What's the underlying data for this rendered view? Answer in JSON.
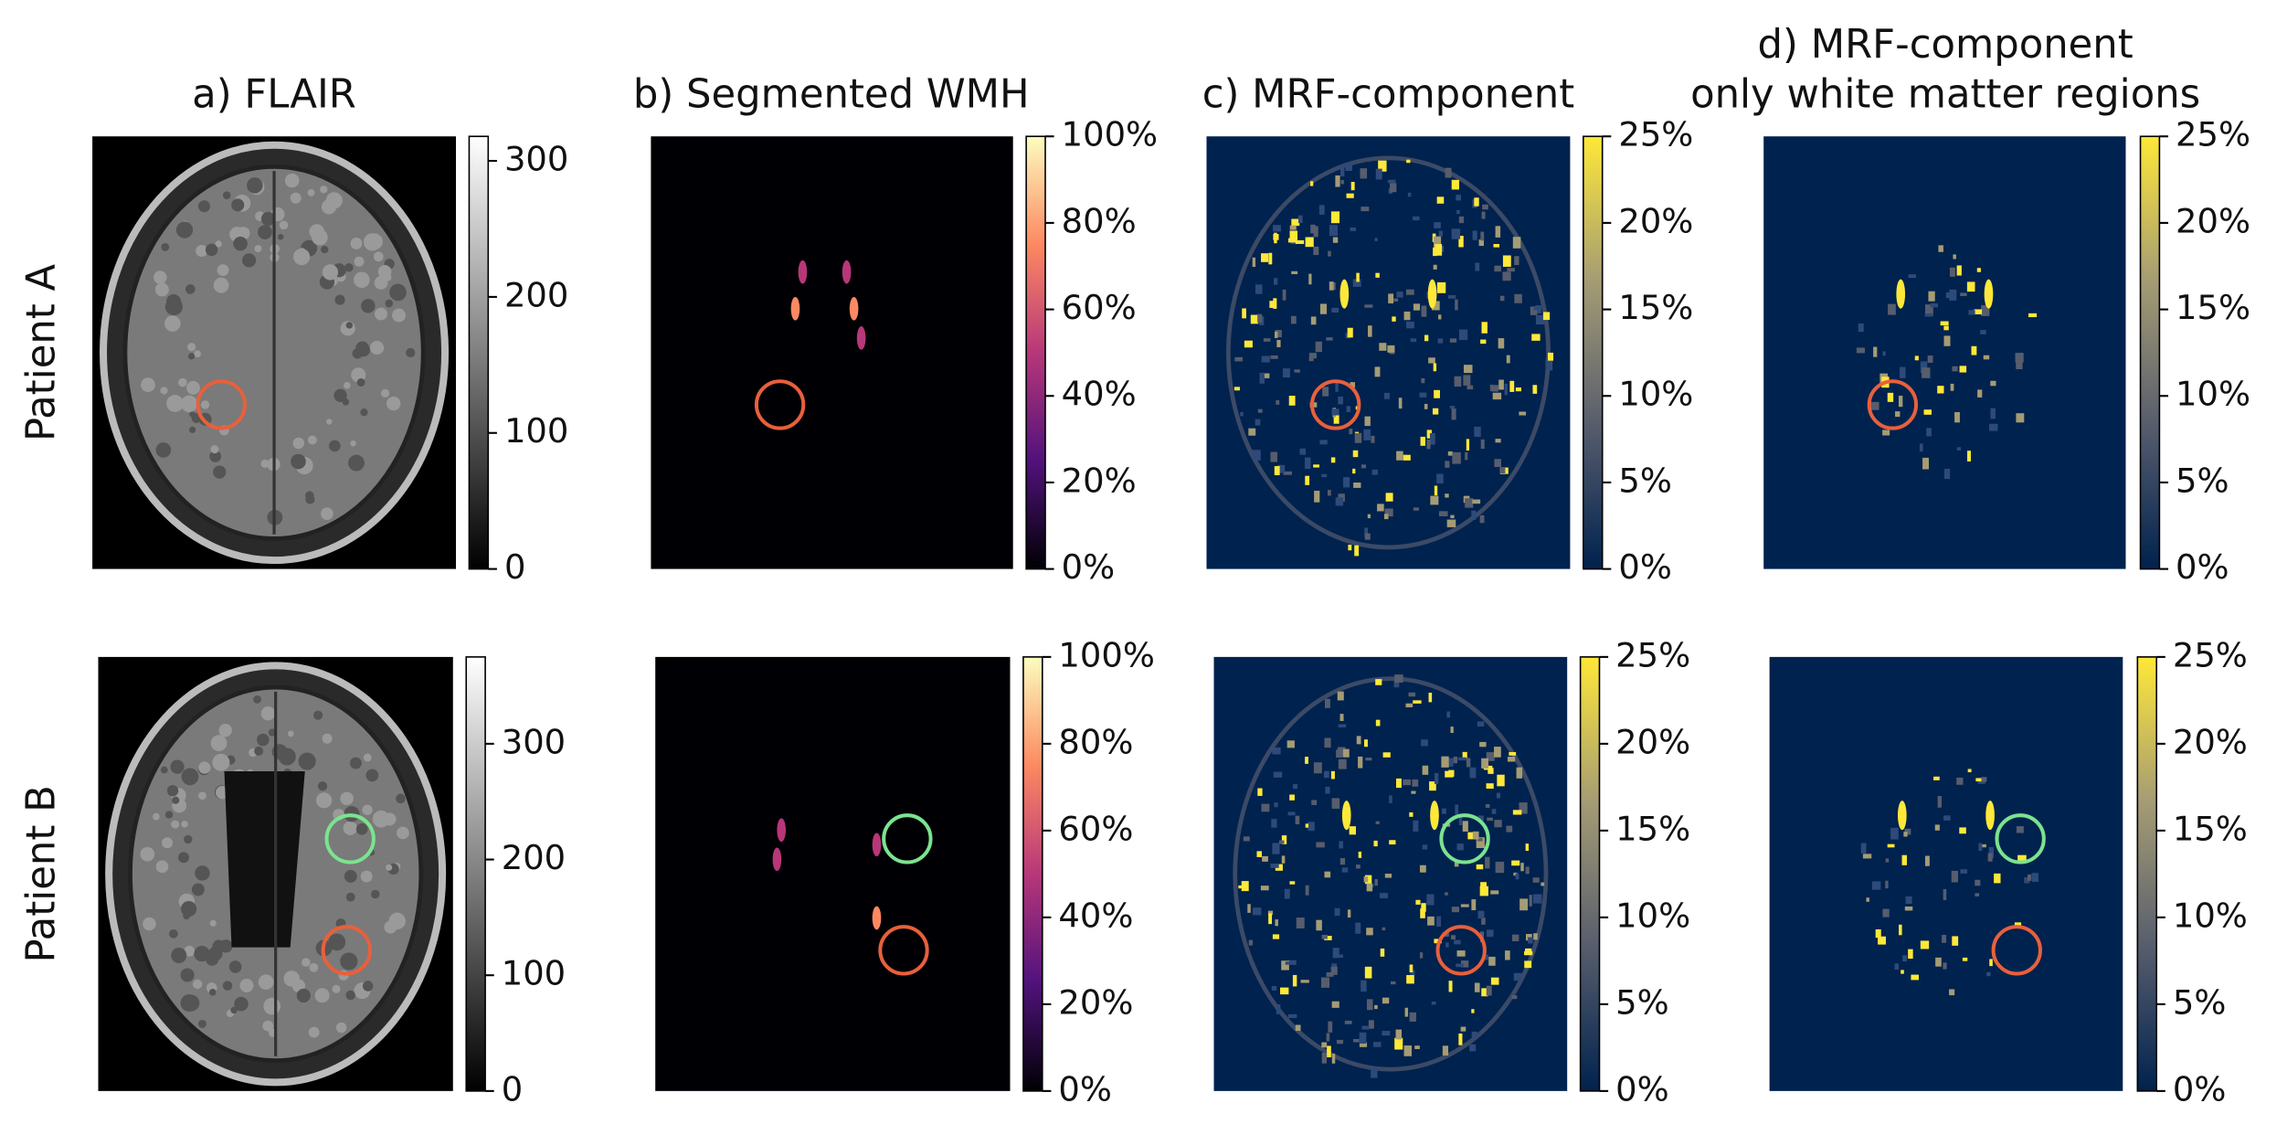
{
  "columns": [
    {
      "title": [
        "a) FLAIR"
      ]
    },
    {
      "title": [
        "b) Segmented WMH"
      ]
    },
    {
      "title": [
        "c) MRF-component"
      ]
    },
    {
      "title": [
        "d) MRF-component",
        "only white matter regions"
      ]
    }
  ],
  "rows": [
    {
      "label": "Patient A"
    },
    {
      "label": "Patient B"
    }
  ],
  "panels": [
    [
      {
        "colorbar": {
          "lim": [
            0,
            318
          ],
          "ticks": [
            0,
            100,
            200,
            300
          ],
          "colors": [
            "#000000",
            "#ffffff"
          ]
        }
      },
      {
        "colorbar": {
          "lim": [
            0,
            100
          ],
          "ticks": [
            {
              "value": 0,
              "label": "0%"
            },
            {
              "value": 20,
              "label": "20%"
            },
            {
              "value": 40,
              "label": "40%"
            },
            {
              "value": 60,
              "label": "60%"
            },
            {
              "value": 80,
              "label": "80%"
            },
            {
              "value": 100,
              "label": "100%"
            }
          ],
          "colors": [
            "#000004",
            "#51127c",
            "#b73779",
            "#fc8961",
            "#fcfdbf"
          ]
        }
      },
      {
        "colorbar": {
          "lim": [
            0,
            25
          ],
          "ticks": [
            {
              "value": 0,
              "label": "0%"
            },
            {
              "value": 5,
              "label": "5%"
            },
            {
              "value": 10,
              "label": "10%"
            },
            {
              "value": 15,
              "label": "15%"
            },
            {
              "value": 20,
              "label": "20%"
            },
            {
              "value": 25,
              "label": "25%"
            }
          ],
          "colors": [
            "#00224e",
            "#575d6d",
            "#a59c74",
            "#fee838"
          ]
        }
      },
      {
        "colorbar": {
          "lim": [
            0,
            25
          ],
          "ticks": [
            {
              "value": 0,
              "label": "0%"
            },
            {
              "value": 5,
              "label": "5%"
            },
            {
              "value": 10,
              "label": "10%"
            },
            {
              "value": 15,
              "label": "15%"
            },
            {
              "value": 20,
              "label": "20%"
            },
            {
              "value": 25,
              "label": "25%"
            }
          ],
          "colors": [
            "#00224e",
            "#575d6d",
            "#a59c74",
            "#fee838"
          ]
        }
      }
    ],
    [
      {
        "colorbar": {
          "lim": [
            0,
            375
          ],
          "ticks": [
            0,
            100,
            200,
            300
          ],
          "colors": [
            "#000000",
            "#ffffff"
          ]
        }
      },
      {
        "colorbar": {
          "lim": [
            0,
            100
          ],
          "ticks": [
            {
              "value": 0,
              "label": "0%"
            },
            {
              "value": 20,
              "label": "20%"
            },
            {
              "value": 40,
              "label": "40%"
            },
            {
              "value": 60,
              "label": "60%"
            },
            {
              "value": 80,
              "label": "80%"
            },
            {
              "value": 100,
              "label": "100%"
            }
          ],
          "colors": [
            "#000004",
            "#51127c",
            "#b73779",
            "#fc8961",
            "#fcfdbf"
          ]
        }
      },
      {
        "colorbar": {
          "lim": [
            0,
            25
          ],
          "ticks": [
            {
              "value": 0,
              "label": "0%"
            },
            {
              "value": 5,
              "label": "5%"
            },
            {
              "value": 10,
              "label": "10%"
            },
            {
              "value": 15,
              "label": "15%"
            },
            {
              "value": 20,
              "label": "20%"
            },
            {
              "value": 25,
              "label": "25%"
            }
          ],
          "colors": [
            "#00224e",
            "#575d6d",
            "#a59c74",
            "#fee838"
          ]
        }
      },
      {
        "colorbar": {
          "lim": [
            0,
            25
          ],
          "ticks": [
            {
              "value": 0,
              "label": "0%"
            },
            {
              "value": 5,
              "label": "5%"
            },
            {
              "value": 10,
              "label": "10%"
            },
            {
              "value": 15,
              "label": "15%"
            },
            {
              "value": 20,
              "label": "20%"
            },
            {
              "value": 25,
              "label": "25%"
            }
          ],
          "colors": [
            "#00224e",
            "#575d6d",
            "#a59c74",
            "#fee838"
          ]
        }
      }
    ]
  ]
}
